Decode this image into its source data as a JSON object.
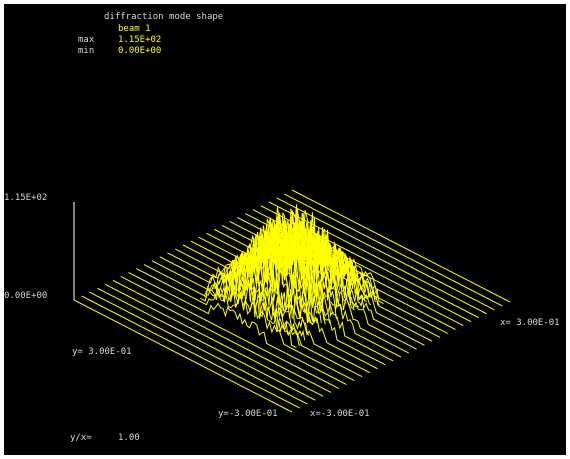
{
  "colors": {
    "background": "#000000",
    "text": "#d8d8d8",
    "accent": "#ffff00",
    "frame": "#ffffff"
  },
  "header": {
    "title": "diffraction mode shape",
    "beam_label": "beam 1",
    "max_label": "max",
    "max_value": "1.15E+02",
    "min_label": "min",
    "min_value": "0.00E+00"
  },
  "axes": {
    "z_top_label": "1.15E+02",
    "z_bottom_label": "0.00E+00",
    "y_corner_label": "y= 3.00E-01",
    "x_corner_label": "x= 3.00E-01",
    "y_neg_label": "y=-3.00E-01",
    "x_neg_label": "x=-3.00E-01",
    "aspect_label": "y/x=",
    "aspect_value": "1.00"
  },
  "chart_data": {
    "type": "surface",
    "title": "diffraction mode shape",
    "series": [
      {
        "name": "beam 1"
      }
    ],
    "x_range": [
      -0.3,
      0.3
    ],
    "y_range": [
      -0.3,
      0.3
    ],
    "z_range": [
      0.0,
      115.0
    ],
    "y_over_x": 1.0,
    "grid_lines": 28,
    "description_values": {
      "max": 115.0,
      "min": 0.0
    }
  }
}
